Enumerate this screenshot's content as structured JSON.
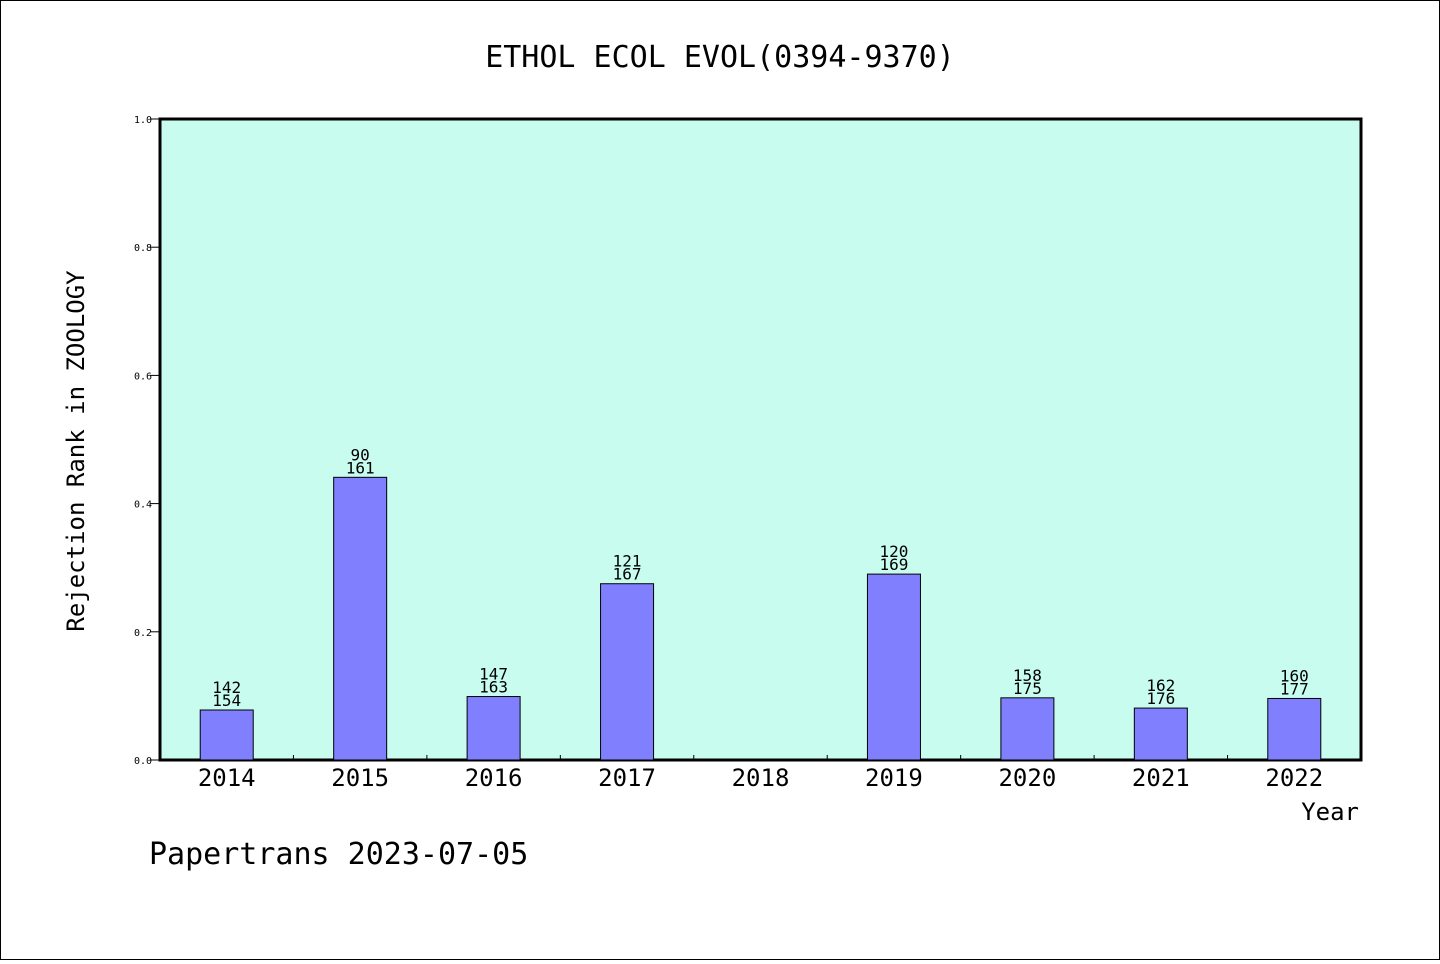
{
  "chart_data": {
    "type": "bar",
    "title": "ETHOL ECOL EVOL(0394-9370)",
    "xlabel": "Year",
    "ylabel": "Rejection Rank in ZOOLOGY",
    "ylim": [
      0,
      1.0
    ],
    "yticks": [
      "0.0",
      "0.2",
      "0.4",
      "0.6",
      "0.8",
      "1.0"
    ],
    "categories": [
      "2014",
      "2015",
      "2016",
      "2017",
      "2018",
      "2019",
      "2020",
      "2021",
      "2022"
    ],
    "values": [
      0.078,
      0.441,
      0.099,
      0.275,
      null,
      0.29,
      0.097,
      0.081,
      0.096
    ],
    "bar_labels": [
      [
        "142",
        "154"
      ],
      [
        "90",
        "161"
      ],
      [
        "147",
        "163"
      ],
      [
        "121",
        "167"
      ],
      null,
      [
        "120",
        "169"
      ],
      [
        "158",
        "175"
      ],
      [
        "162",
        "176"
      ],
      [
        "160",
        "177"
      ]
    ],
    "grid": false,
    "colors": {
      "plot_bg": "#c8fcee",
      "bar": "#8080ff"
    }
  },
  "footer": "Papertrans 2023-07-05"
}
